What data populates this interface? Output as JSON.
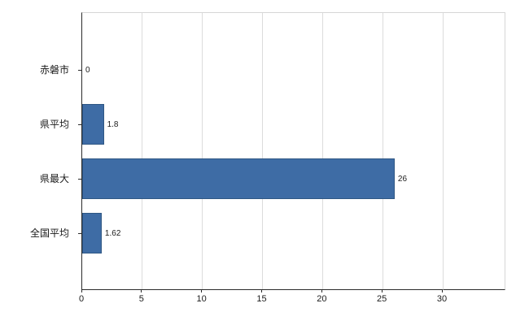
{
  "chart_data": {
    "type": "bar",
    "orientation": "horizontal",
    "title": "",
    "categories": [
      "赤磐市",
      "県平均",
      "県最大",
      "全国平均"
    ],
    "values": [
      0,
      1.8,
      26,
      1.62
    ],
    "value_labels": [
      "0",
      "1.8",
      "26",
      "1.62"
    ],
    "xlim": [
      0,
      30
    ],
    "xticks": [
      0,
      5,
      10,
      15,
      20,
      25,
      30
    ],
    "legend": "none",
    "grid": "vertical",
    "bar_color": "#3e6ca5",
    "bar_border_color": "#2f5784",
    "gridline_color": "#dcdcdc",
    "axis_color": "#2b2b2b",
    "background_color": "#ffffff"
  }
}
